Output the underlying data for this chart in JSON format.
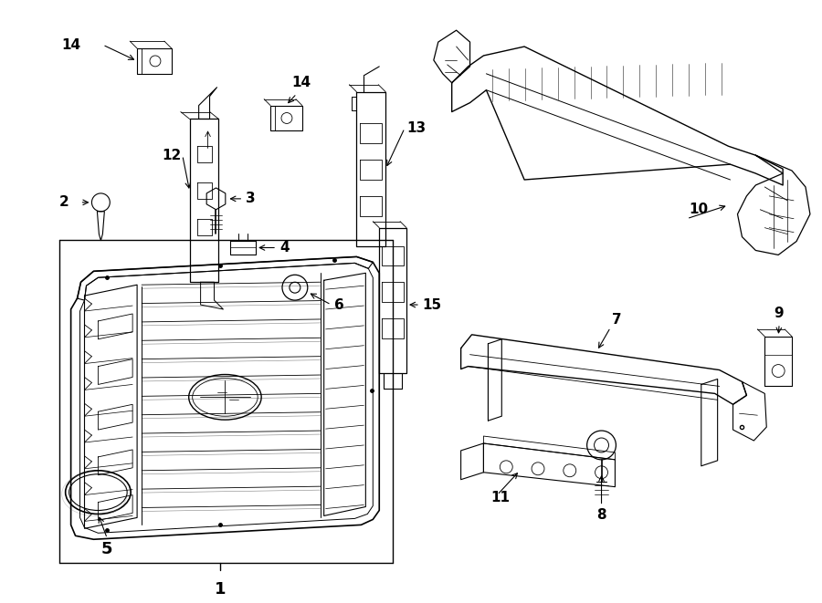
{
  "bg_color": "#ffffff",
  "line_color": "#000000",
  "fig_width": 9.0,
  "fig_height": 6.61,
  "dpi": 100,
  "lw_main": 1.0,
  "lw_thin": 0.5,
  "lw_med": 0.7,
  "font_label": 11,
  "font_small": 9
}
